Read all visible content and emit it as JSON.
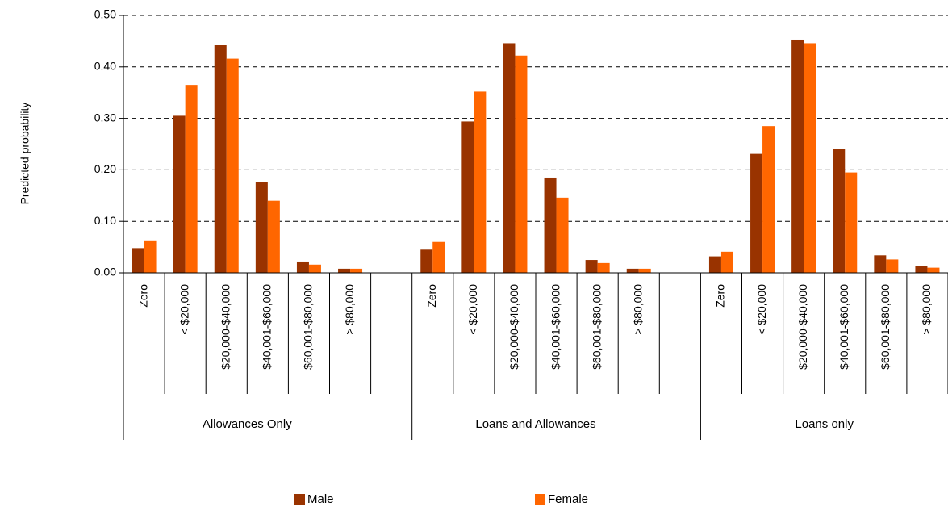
{
  "chart_data": {
    "type": "bar",
    "title": "",
    "xlabel": "",
    "ylabel": "Predicted probability",
    "ylim": [
      0,
      0.5
    ],
    "yticks": [
      "0.00",
      "0.10",
      "0.20",
      "0.30",
      "0.40",
      "0.50"
    ],
    "grid": "horizontal dashed",
    "legend_position": "bottom",
    "categories": [
      "Zero",
      "< $20,000",
      "$20,000-$40,000",
      "$40,001-$60,000",
      "$60,001-$80,000",
      "> $80,000"
    ],
    "groups": [
      {
        "name": "Allowances Only",
        "series": [
          {
            "name": "Male",
            "values": [
              0.048,
              0.305,
              0.442,
              0.176,
              0.022,
              0.008
            ]
          },
          {
            "name": "Female",
            "values": [
              0.063,
              0.365,
              0.416,
              0.14,
              0.016,
              0.008
            ]
          }
        ]
      },
      {
        "name": "Loans and Allowances",
        "series": [
          {
            "name": "Male",
            "values": [
              0.045,
              0.294,
              0.446,
              0.185,
              0.025,
              0.008
            ]
          },
          {
            "name": "Female",
            "values": [
              0.06,
              0.352,
              0.422,
              0.146,
              0.019,
              0.008
            ]
          }
        ]
      },
      {
        "name": "Loans only",
        "series": [
          {
            "name": "Male",
            "values": [
              0.032,
              0.231,
              0.453,
              0.241,
              0.034,
              0.013
            ]
          },
          {
            "name": "Female",
            "values": [
              0.041,
              0.285,
              0.446,
              0.195,
              0.026,
              0.01
            ]
          }
        ]
      }
    ],
    "legend": [
      {
        "name": "Male",
        "color": "#993300"
      },
      {
        "name": "Female",
        "color": "#ff6600"
      }
    ]
  }
}
